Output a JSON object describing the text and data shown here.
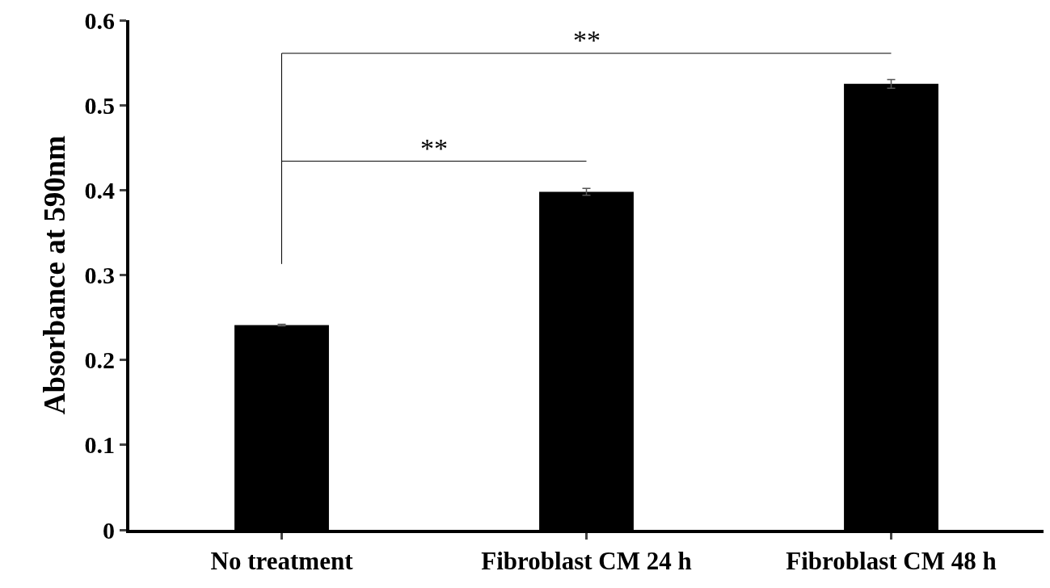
{
  "chart_data": {
    "type": "bar",
    "ylabel": "Absorbance at 590nm",
    "categories": [
      "No treatment",
      "Fibroblast CM 24 h",
      "Fibroblast CM 48 h"
    ],
    "values": [
      0.241,
      0.398,
      0.525
    ],
    "errors": [
      0.001,
      0.004,
      0.005
    ],
    "color": "#000000",
    "ylim": [
      0,
      0.6
    ],
    "yticks": [
      0,
      0.1,
      0.2,
      0.3,
      0.4,
      0.5,
      0.6
    ],
    "annotations": [
      "**",
      "**"
    ]
  }
}
